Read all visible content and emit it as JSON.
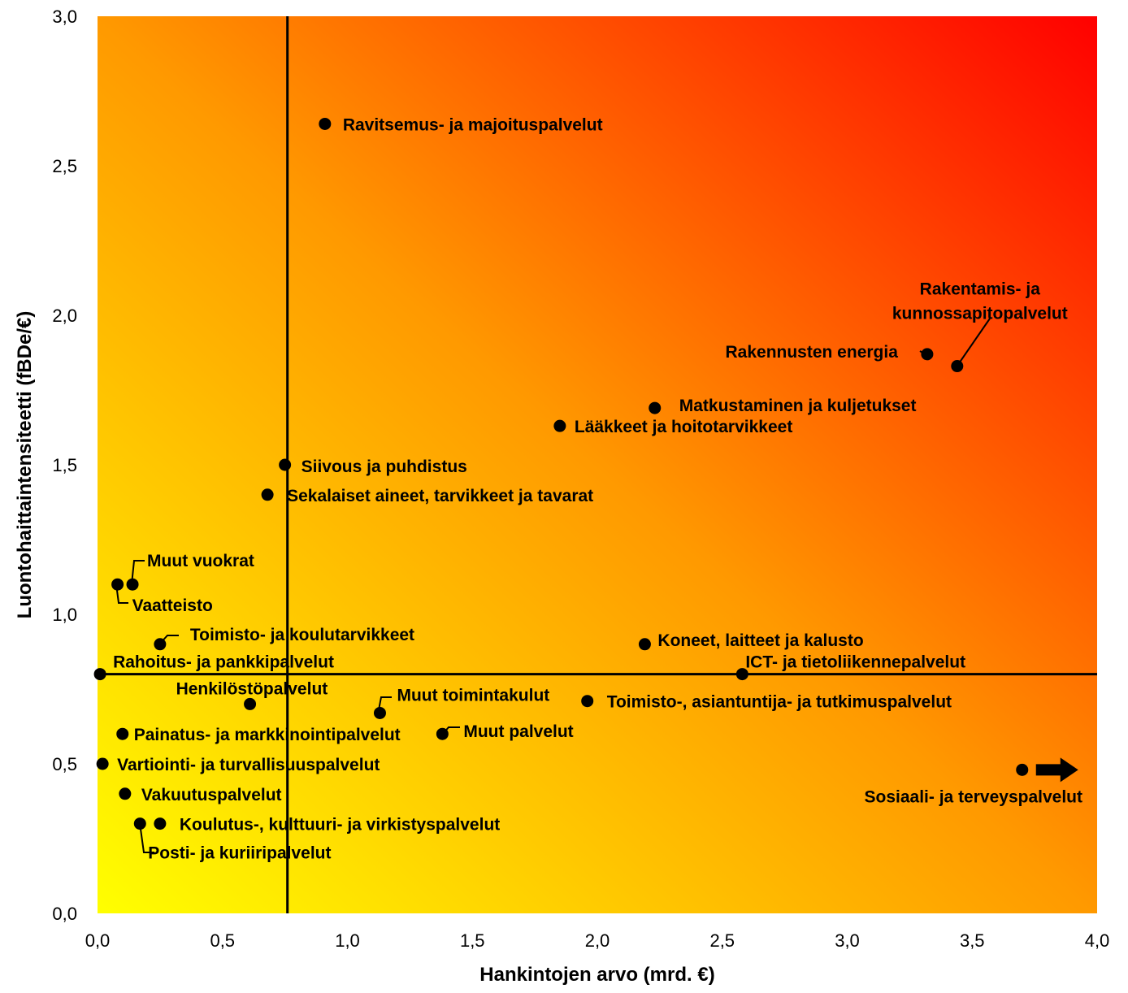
{
  "chart_data": {
    "type": "scatter",
    "title": "",
    "xlabel": "Hankintojen arvo (mrd. €)",
    "ylabel": "Luontohaittaintensiteetti (fBDe/€)",
    "xlim": [
      0,
      4
    ],
    "ylim": [
      0,
      3
    ],
    "x_ticks": [
      "0,0",
      "0,5",
      "1,0",
      "1,5",
      "2,0",
      "2,5",
      "3,0",
      "3,5",
      "4,0"
    ],
    "y_ticks": [
      "0,0",
      "0,5",
      "1,0",
      "1,5",
      "2,0",
      "2,5",
      "3,0"
    ],
    "grid": false,
    "background": "gradient yellow (bottom-left) to red (top-right)",
    "colors": {
      "bottom_left": "#ffff00",
      "middle": "#ff9900",
      "top_right": "#ff0000",
      "points": "#000000"
    },
    "reference_lines": {
      "vertical_x": 0.76,
      "horizontal_y": 0.8
    },
    "points": [
      {
        "label": "Ravitsemus- ja majoituspalvelut",
        "x": 0.91,
        "y": 2.64
      },
      {
        "label": "Rakentamis- ja kunnossapitopalvelut",
        "x": 3.44,
        "y": 1.83
      },
      {
        "label": "Rakennusten energia",
        "x": 3.32,
        "y": 1.87
      },
      {
        "label": "Matkustaminen ja kuljetukset",
        "x": 2.23,
        "y": 1.69
      },
      {
        "label": "Lääkkeet ja hoitotarvikkeet",
        "x": 1.85,
        "y": 1.63
      },
      {
        "label": "Siivous ja puhdistus",
        "x": 0.75,
        "y": 1.5
      },
      {
        "label": "Sekalaiset aineet, tarvikkeet ja tavarat",
        "x": 0.68,
        "y": 1.4
      },
      {
        "label": "Muut vuokrat",
        "x": 0.14,
        "y": 1.1
      },
      {
        "label": "Vaatteisto",
        "x": 0.08,
        "y": 1.1
      },
      {
        "label": "Toimisto- ja koulutarvikkeet",
        "x": 0.25,
        "y": 0.9
      },
      {
        "label": "Koneet, laitteet ja kalusto",
        "x": 2.19,
        "y": 0.9
      },
      {
        "label": "Rahoitus- ja pankkipalvelut",
        "x": 0.01,
        "y": 0.8
      },
      {
        "label": "ICT- ja tietoliikennepalvelut",
        "x": 2.58,
        "y": 0.8
      },
      {
        "label": "Henkilöstöpalvelut",
        "x": 0.61,
        "y": 0.7
      },
      {
        "label": "Muut toimintakulut",
        "x": 1.13,
        "y": 0.67
      },
      {
        "label": "Toimisto-, asiantuntija- ja tutkimuspalvelut",
        "x": 1.96,
        "y": 0.71
      },
      {
        "label": "Painatus- ja markkinointipalvelut",
        "x": 0.1,
        "y": 0.6
      },
      {
        "label": "Muut palvelut",
        "x": 1.38,
        "y": 0.6
      },
      {
        "label": "Vartiointi- ja turvallisuuspalvelut",
        "x": 0.02,
        "y": 0.5
      },
      {
        "label": "Sosiaali- ja terveyspalvelut",
        "x": 3.7,
        "y": 0.48,
        "note_arrow": "right"
      },
      {
        "label": "Vakuutuspalvelut",
        "x": 0.11,
        "y": 0.4
      },
      {
        "label": "Koulutus-, kulttuuri- ja virkistyspalvelut",
        "x": 0.25,
        "y": 0.3
      },
      {
        "label": "Posti- ja kuriiripalvelut",
        "x": 0.17,
        "y": 0.3
      }
    ]
  }
}
